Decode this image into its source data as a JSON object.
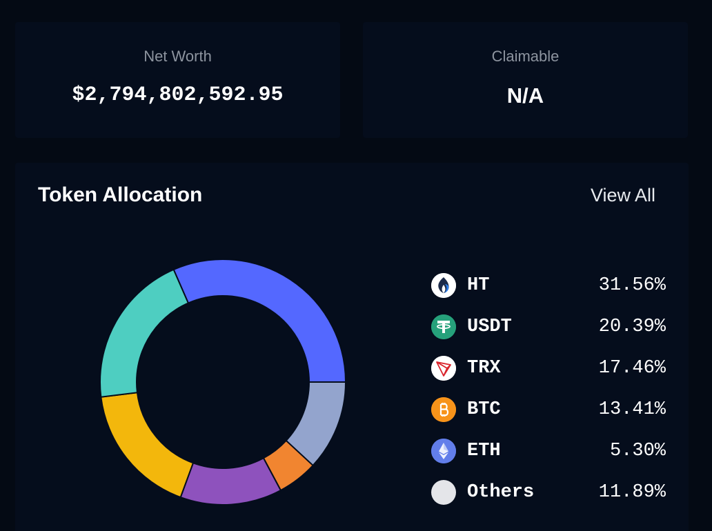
{
  "summary": {
    "net_worth_label": "Net Worth",
    "net_worth_value": "$2,794,802,592.95",
    "claimable_label": "Claimable",
    "claimable_value": "N/A"
  },
  "allocation": {
    "title": "Token Allocation",
    "view_all_label": "View All"
  },
  "colors": {
    "HT": "#5468ff",
    "Others": "#93a4cd",
    "ETH": "#f18530",
    "BTC": "#8e52bd",
    "TRX": "#f3b70c",
    "USDT": "#4ecec1"
  },
  "chart_data": {
    "type": "pie",
    "title": "Token Allocation",
    "donut": true,
    "unit": "%",
    "legend_position": "right",
    "categories": [
      "HT",
      "USDT",
      "TRX",
      "BTC",
      "ETH",
      "Others"
    ],
    "values": [
      31.56,
      20.39,
      17.46,
      13.41,
      5.3,
      11.89
    ],
    "labels": [
      "31.56%",
      "20.39%",
      "17.46%",
      "13.41%",
      "5.30%",
      "11.89%"
    ],
    "draw_order": [
      "HT",
      "Others",
      "ETH",
      "BTC",
      "TRX",
      "USDT"
    ],
    "icons": [
      "huobi-token-icon",
      "tether-icon",
      "tron-icon",
      "bitcoin-icon",
      "ethereum-icon",
      "others-icon"
    ]
  }
}
